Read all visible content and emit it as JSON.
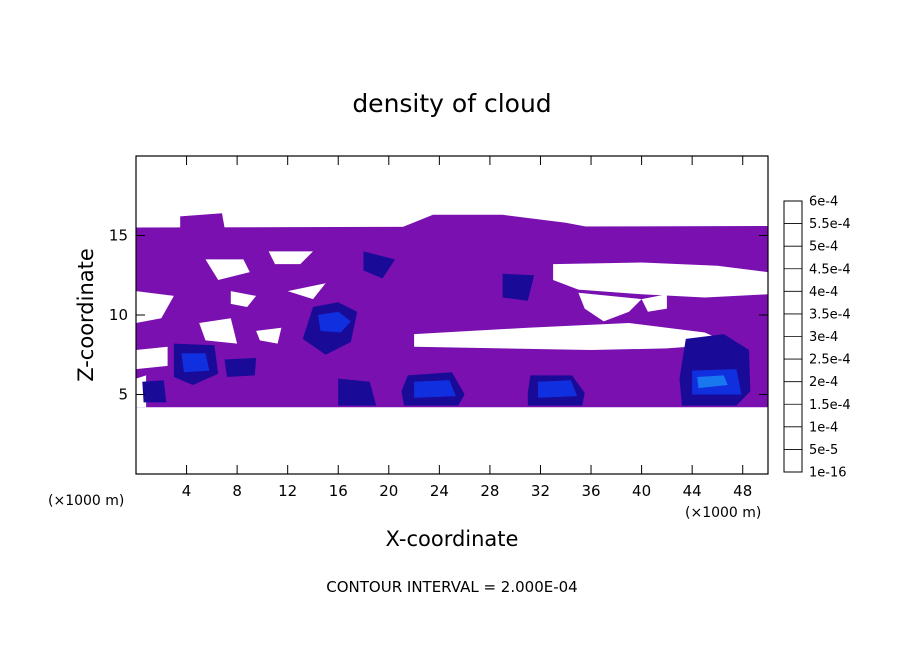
{
  "chart_data": {
    "type": "heatmap",
    "title": "density of cloud",
    "xlabel": "X-coordinate",
    "ylabel": "Z-coordinate",
    "x_unit": "(×1000 m)",
    "y_unit": "(×1000 m)",
    "footer": "CONTOUR INTERVAL = 2.000E-04",
    "xlim": [
      0,
      50
    ],
    "ylim": [
      0,
      20
    ],
    "x_ticks": [
      4,
      8,
      12,
      16,
      20,
      24,
      28,
      32,
      36,
      40,
      44,
      48
    ],
    "x_tick_labels": [
      "4",
      "8",
      "12",
      "16",
      "20",
      "24",
      "28",
      "32",
      "36",
      "40",
      "44",
      "48"
    ],
    "y_ticks": [
      5,
      10,
      15
    ],
    "y_tick_labels": [
      "5",
      "10",
      "15"
    ],
    "colorbar": {
      "labels": [
        "1e-16",
        "5e-5",
        "1e-4",
        "1.5e-4",
        "2e-4",
        "2.5e-4",
        "3e-4",
        "3.5e-4",
        "4e-4",
        "4.5e-4",
        "5e-4",
        "5.5e-4",
        "6e-4"
      ],
      "colors": [
        "#7a10b0",
        "#1a0a98",
        "#1030e0",
        "#1878f0",
        "#10c8e8",
        "#10e0a0",
        "#20d020",
        "#88e020",
        "#e8e810",
        "#f8b010",
        "#f86010",
        "#f82020",
        "#f86868"
      ]
    },
    "cloud_regions": [
      {
        "level": 0,
        "polygon": [
          [
            0,
            15.5
          ],
          [
            50,
            15.6
          ],
          [
            50,
            4.2
          ],
          [
            0,
            4.2
          ]
        ]
      },
      {
        "level": 0,
        "polygon": [
          [
            3.5,
            16.2
          ],
          [
            6.8,
            16.4
          ],
          [
            7,
            15.5
          ],
          [
            3.5,
            15.5
          ]
        ]
      },
      {
        "level": 0,
        "polygon": [
          [
            21,
            15.5
          ],
          [
            23.5,
            16.3
          ],
          [
            29,
            16.3
          ],
          [
            34,
            15.8
          ],
          [
            36,
            15.5
          ]
        ]
      },
      {
        "level": -1,
        "polygon": [
          [
            0,
            11.5
          ],
          [
            3,
            11.2
          ],
          [
            2,
            9.8
          ],
          [
            0,
            9.5
          ]
        ]
      },
      {
        "level": -1,
        "polygon": [
          [
            5.5,
            13.5
          ],
          [
            8.5,
            13.5
          ],
          [
            9,
            12.7
          ],
          [
            6.5,
            12.2
          ]
        ]
      },
      {
        "level": -1,
        "polygon": [
          [
            7.5,
            11.5
          ],
          [
            9.5,
            11.2
          ],
          [
            8.8,
            10.5
          ],
          [
            7.5,
            10.7
          ]
        ]
      },
      {
        "level": -1,
        "polygon": [
          [
            10.5,
            14
          ],
          [
            14,
            14
          ],
          [
            13,
            13.2
          ],
          [
            11,
            13.2
          ]
        ]
      },
      {
        "level": -1,
        "polygon": [
          [
            12,
            11.5
          ],
          [
            15,
            12
          ],
          [
            14,
            11
          ]
        ]
      },
      {
        "level": -1,
        "polygon": [
          [
            5,
            9.5
          ],
          [
            7.5,
            9.8
          ],
          [
            8,
            8.2
          ],
          [
            5.5,
            8.4
          ]
        ]
      },
      {
        "level": -1,
        "polygon": [
          [
            9.5,
            9
          ],
          [
            11.5,
            9.2
          ],
          [
            11.2,
            8.2
          ],
          [
            9.8,
            8.4
          ]
        ]
      },
      {
        "level": -1,
        "polygon": [
          [
            0,
            7.8
          ],
          [
            2.5,
            8
          ],
          [
            2.5,
            6.8
          ],
          [
            0,
            6.6
          ]
        ]
      },
      {
        "level": -1,
        "polygon": [
          [
            22,
            8
          ],
          [
            36,
            7.8
          ],
          [
            42,
            7.9
          ],
          [
            47,
            8.2
          ],
          [
            45,
            8.9
          ],
          [
            39,
            9.5
          ],
          [
            31,
            9.2
          ],
          [
            22,
            8.8
          ]
        ]
      },
      {
        "level": -1,
        "polygon": [
          [
            33,
            13.2
          ],
          [
            40,
            13.3
          ],
          [
            46,
            13.1
          ],
          [
            50,
            12.7
          ],
          [
            50,
            11.3
          ],
          [
            45,
            11.1
          ],
          [
            40,
            11.3
          ],
          [
            35,
            11.6
          ],
          [
            33,
            12.2
          ]
        ]
      },
      {
        "level": -1,
        "polygon": [
          [
            35,
            11.4
          ],
          [
            40,
            11
          ],
          [
            39,
            10.2
          ],
          [
            37,
            9.6
          ],
          [
            35.5,
            10.4
          ]
        ]
      },
      {
        "level": -1,
        "polygon": [
          [
            40,
            11
          ],
          [
            42,
            11.3
          ],
          [
            42,
            10.4
          ],
          [
            40.5,
            10.2
          ]
        ]
      },
      {
        "level": -1,
        "polygon": [
          [
            0,
            6
          ],
          [
            0.8,
            6.2
          ],
          [
            0.8,
            4.2
          ],
          [
            0,
            4.2
          ]
        ]
      },
      {
        "level": 1,
        "polygon": [
          [
            14,
            10.5
          ],
          [
            16,
            10.8
          ],
          [
            17.5,
            10.2
          ],
          [
            17,
            8.3
          ],
          [
            15,
            7.5
          ],
          [
            13.2,
            8.5
          ]
        ]
      },
      {
        "level": 1,
        "polygon": [
          [
            3,
            8.2
          ],
          [
            6.2,
            8.1
          ],
          [
            6.5,
            6.3
          ],
          [
            4.5,
            5.6
          ],
          [
            3,
            6.1
          ]
        ]
      },
      {
        "level": 1,
        "polygon": [
          [
            7,
            7.2
          ],
          [
            9.5,
            7.3
          ],
          [
            9.4,
            6.2
          ],
          [
            7.2,
            6.1
          ]
        ]
      },
      {
        "level": 1,
        "polygon": [
          [
            21.5,
            6.2
          ],
          [
            25,
            6.4
          ],
          [
            26,
            5
          ],
          [
            25.5,
            4.3
          ],
          [
            21.2,
            4.3
          ],
          [
            21,
            5.2
          ]
        ]
      },
      {
        "level": 1,
        "polygon": [
          [
            31.2,
            6.2
          ],
          [
            34.5,
            6.2
          ],
          [
            35.5,
            5.1
          ],
          [
            35.3,
            4.3
          ],
          [
            31,
            4.3
          ],
          [
            31,
            5.1
          ]
        ]
      },
      {
        "level": 1,
        "polygon": [
          [
            43.5,
            8.5
          ],
          [
            46.5,
            8.8
          ],
          [
            48.5,
            7.8
          ],
          [
            48.6,
            5.2
          ],
          [
            47.5,
            4.3
          ],
          [
            43.2,
            4.3
          ],
          [
            43,
            6
          ]
        ]
      },
      {
        "level": 1,
        "polygon": [
          [
            16,
            6
          ],
          [
            18.5,
            5.8
          ],
          [
            19,
            4.3
          ],
          [
            16,
            4.3
          ]
        ]
      },
      {
        "level": 1,
        "polygon": [
          [
            0.5,
            5.8
          ],
          [
            2.2,
            5.9
          ],
          [
            2.4,
            4.5
          ],
          [
            0.6,
            4.5
          ]
        ]
      },
      {
        "level": 1,
        "polygon": [
          [
            29,
            12.6
          ],
          [
            31.5,
            12.5
          ],
          [
            31,
            10.9
          ],
          [
            29,
            11.1
          ]
        ]
      },
      {
        "level": 1,
        "polygon": [
          [
            18,
            14
          ],
          [
            20.5,
            13.5
          ],
          [
            19.5,
            12.3
          ],
          [
            18,
            12.8
          ]
        ]
      },
      {
        "level": 2,
        "polygon": [
          [
            14.4,
            10
          ],
          [
            16,
            10.2
          ],
          [
            17,
            9.6
          ],
          [
            16.2,
            8.9
          ],
          [
            14.6,
            9
          ]
        ]
      },
      {
        "level": 2,
        "polygon": [
          [
            3.6,
            7.6
          ],
          [
            5.5,
            7.6
          ],
          [
            5.8,
            6.5
          ],
          [
            3.8,
            6.4
          ]
        ]
      },
      {
        "level": 2,
        "polygon": [
          [
            22,
            5.8
          ],
          [
            24.8,
            5.9
          ],
          [
            25.3,
            4.9
          ],
          [
            22,
            4.8
          ]
        ]
      },
      {
        "level": 2,
        "polygon": [
          [
            31.8,
            5.8
          ],
          [
            34.4,
            5.9
          ],
          [
            34.9,
            4.9
          ],
          [
            31.8,
            4.8
          ]
        ]
      },
      {
        "level": 2,
        "polygon": [
          [
            44,
            6.5
          ],
          [
            47.5,
            6.6
          ],
          [
            47.9,
            5
          ],
          [
            44,
            5
          ]
        ]
      },
      {
        "level": 3,
        "polygon": [
          [
            44.4,
            6.1
          ],
          [
            46.5,
            6.2
          ],
          [
            46.8,
            5.6
          ],
          [
            44.5,
            5.4
          ]
        ]
      }
    ]
  }
}
